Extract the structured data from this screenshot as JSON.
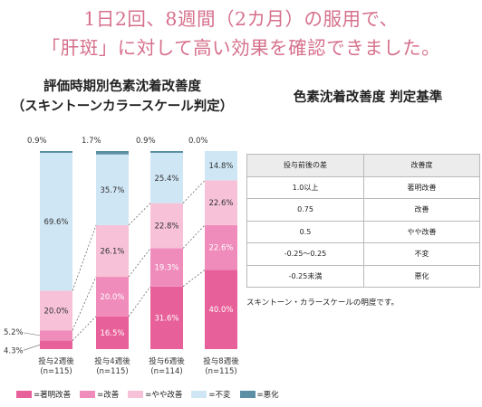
{
  "headline": {
    "line1": "1日2回、8週間（2カ月）の服用で、",
    "line2": "「肝斑」に対して高い効果を確認できました。"
  },
  "chart_title": {
    "line1": "評価時期別色素沈着改善度",
    "line2": "（スキントーンカラースケール判定）"
  },
  "criteria": {
    "title": "色素沈着改善度 判定基準",
    "headers": [
      "投与前後の差",
      "改善度"
    ],
    "rows": [
      [
        "1.0以上",
        "著明改善"
      ],
      [
        "0.75",
        "改善"
      ],
      [
        "0.5",
        "やや改善"
      ],
      [
        "-0.25〜0.25",
        "不変"
      ],
      [
        "-0.25未満",
        "悪化"
      ]
    ],
    "note": "スキントーン・カラースケールの明度です。"
  },
  "chart_data": {
    "type": "bar",
    "stacked": true,
    "unit": "%",
    "ylim": [
      0,
      100
    ],
    "categories": [
      {
        "label": "投与2週後",
        "n": "(n=115)"
      },
      {
        "label": "投与4週後",
        "n": "(n=115)"
      },
      {
        "label": "投与6週後",
        "n": "(n=114)"
      },
      {
        "label": "投与8週後",
        "n": "(n=115)"
      }
    ],
    "series": [
      {
        "name": "=著明改善",
        "color": "#e8609a",
        "values": [
          4.3,
          16.5,
          31.6,
          40.0
        ],
        "labels": [
          "4.3%",
          "16.5%",
          "31.6%",
          "40.0%"
        ]
      },
      {
        "name": "=改善",
        "color": "#f08cbc",
        "values": [
          5.2,
          20.0,
          19.3,
          22.6
        ],
        "labels": [
          "5.2%",
          "20.0%",
          "19.3%",
          "22.6%"
        ]
      },
      {
        "name": "=やや改善",
        "color": "#f7c2d8",
        "values": [
          20.0,
          26.1,
          22.8,
          22.6
        ],
        "labels": [
          "20.0%",
          "26.1%",
          "22.8%",
          "22.6%"
        ]
      },
      {
        "name": "=不変",
        "color": "#cfe6f5",
        "values": [
          69.6,
          35.7,
          25.4,
          14.8
        ],
        "labels": [
          "69.6%",
          "35.7%",
          "25.4%",
          "14.8%"
        ]
      },
      {
        "name": "=悪化",
        "color": "#5b8fa5",
        "values": [
          0.9,
          1.7,
          0.9,
          0.0
        ],
        "labels": [
          "0.9%",
          "1.7%",
          "0.9%",
          "0.0%"
        ]
      }
    ],
    "legend_position": "bottom"
  }
}
